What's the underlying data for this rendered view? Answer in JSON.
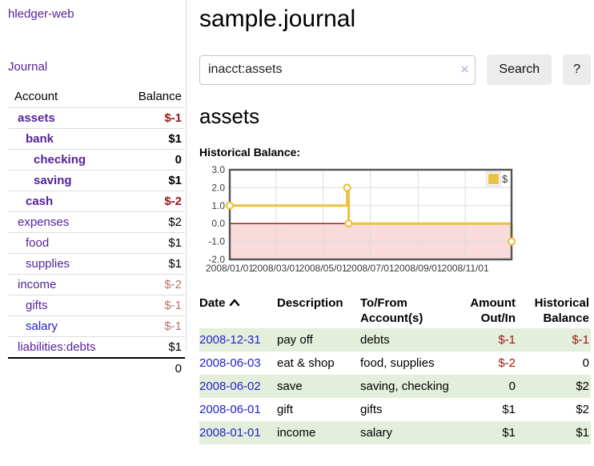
{
  "colors": {
    "link_purple": "#55229b",
    "link_blue": "#2222cc",
    "negative_strong": "#9c1313",
    "negative_soft": "#c1706e",
    "row_stripe_green": "#e4efdb",
    "series_yellow": "#edc240",
    "chart_border_gray": "#545454",
    "negative_region_pink": "#f9dbdb",
    "zero_line_darkred": "#8f0e0e"
  },
  "sidebar": {
    "brand": "hledger-web",
    "journal_link": "Journal",
    "accounts_table": {
      "headers": {
        "account": "Account",
        "balance": "Balance"
      },
      "rows": [
        {
          "name": "assets",
          "depth": 1,
          "bold": true,
          "balance": "$-1",
          "balance_style": "neg-strong",
          "link_style": "purple"
        },
        {
          "name": "bank",
          "depth": 2,
          "bold": true,
          "balance": "$1",
          "balance_style": "normal",
          "link_style": "purple"
        },
        {
          "name": "checking",
          "depth": 3,
          "bold": true,
          "balance": "0",
          "balance_style": "normal",
          "link_style": "purple"
        },
        {
          "name": "saving",
          "depth": 3,
          "bold": true,
          "balance": "$1",
          "balance_style": "normal",
          "link_style": "purple"
        },
        {
          "name": "cash",
          "depth": 2,
          "bold": true,
          "balance": "$-2",
          "balance_style": "neg-strong",
          "link_style": "purple"
        },
        {
          "name": "expenses",
          "depth": 1,
          "bold": false,
          "balance": "$2",
          "balance_style": "normal",
          "link_style": "purple"
        },
        {
          "name": "food",
          "depth": 2,
          "bold": false,
          "balance": "$1",
          "balance_style": "normal",
          "link_style": "purple"
        },
        {
          "name": "supplies",
          "depth": 2,
          "bold": false,
          "balance": "$1",
          "balance_style": "normal",
          "link_style": "purple"
        },
        {
          "name": "income",
          "depth": 1,
          "bold": false,
          "balance": "$-2",
          "balance_style": "neg-soft",
          "link_style": "purple"
        },
        {
          "name": "gifts",
          "depth": 2,
          "bold": false,
          "balance": "$-1",
          "balance_style": "neg-soft",
          "link_style": "purple"
        },
        {
          "name": "salary",
          "depth": 2,
          "bold": false,
          "balance": "$-1",
          "balance_style": "neg-soft",
          "link_style": "blue"
        },
        {
          "name": "liabilities:debts",
          "depth": 1,
          "bold": false,
          "balance": "$1",
          "balance_style": "normal",
          "link_style": "purple"
        }
      ],
      "total": "0"
    }
  },
  "main": {
    "title": "sample.journal",
    "search": {
      "value": "inacct:assets",
      "clear_icon": "×",
      "search_button": "Search",
      "help_button": "?"
    },
    "account_heading": "assets",
    "chart_label": "Historical Balance:"
  },
  "chart_data": {
    "type": "line",
    "title": "Historical Balance",
    "step": true,
    "series": [
      {
        "name": "$",
        "color": "#edc240",
        "points": [
          {
            "date": "2008-01-01",
            "value": 1
          },
          {
            "date": "2008-06-01",
            "value": 2
          },
          {
            "date": "2008-06-03",
            "value": 0
          },
          {
            "date": "2008-12-31",
            "value": -1
          }
        ]
      }
    ],
    "x_ticks": [
      "2008/01/01",
      "2008/03/01",
      "2008/05/01",
      "2008/07/01",
      "2008/09/01",
      "2008/11/01"
    ],
    "y_ticks": [
      "3.0",
      "2.0",
      "1.0",
      "0.0",
      "-1.0",
      "-2.0"
    ],
    "ylim": [
      -2,
      3
    ],
    "x_range_days": 365,
    "x_start": "2008-01-01",
    "grid": true,
    "legend_position": "top-right",
    "legend_label": "$",
    "negative_region_color": "#f9dbdb",
    "zero_line_color": "#8f0e0e"
  },
  "transactions": {
    "headers": {
      "date": "Date",
      "description": "Description",
      "accounts": "To/From Account(s)",
      "amount": "Amount Out/In",
      "balance": "Historical Balance"
    },
    "rows": [
      {
        "date": "2008-12-31",
        "description": "pay off",
        "accounts": "debts",
        "amount": "$-1",
        "amount_style": "neg",
        "balance": "$-1",
        "balance_style": "neg",
        "shaded": true
      },
      {
        "date": "2008-06-03",
        "description": "eat & shop",
        "accounts": "food, supplies",
        "amount": "$-2",
        "amount_style": "neg",
        "balance": "0",
        "balance_style": "normal",
        "shaded": false
      },
      {
        "date": "2008-06-02",
        "description": "save",
        "accounts": "saving, checking",
        "amount": "0",
        "amount_style": "normal",
        "balance": "$2",
        "balance_style": "normal",
        "shaded": true
      },
      {
        "date": "2008-06-01",
        "description": "gift",
        "accounts": "gifts",
        "amount": "$1",
        "amount_style": "normal",
        "balance": "$2",
        "balance_style": "normal",
        "shaded": false
      },
      {
        "date": "2008-01-01",
        "description": "income",
        "accounts": "salary",
        "amount": "$1",
        "amount_style": "normal",
        "balance": "$1",
        "balance_style": "normal",
        "shaded": true
      }
    ]
  }
}
